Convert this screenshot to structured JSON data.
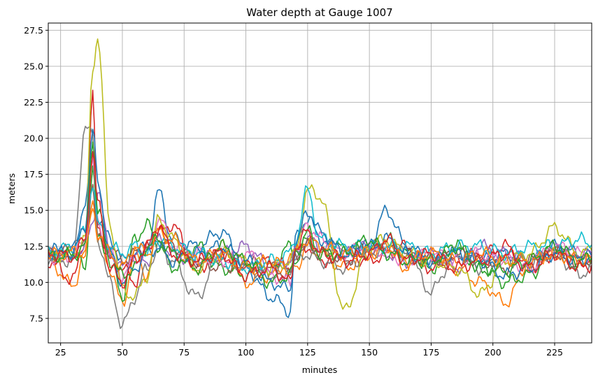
{
  "chart_data": {
    "type": "line",
    "title": "Water depth at Gauge 1007",
    "xlabel": "minutes",
    "ylabel": "meters",
    "xlim": [
      20,
      240
    ],
    "ylim": [
      5.8,
      28.0
    ],
    "xticks": [
      25,
      50,
      75,
      100,
      125,
      150,
      175,
      200,
      225
    ],
    "yticks": [
      7.5,
      10.0,
      12.5,
      15.0,
      17.5,
      20.0,
      22.5,
      25.0,
      27.5
    ],
    "grid": true,
    "legend": "none",
    "colors": [
      "#1f77b4",
      "#ff7f0e",
      "#2ca02c",
      "#d62728",
      "#9467bd",
      "#8c564b",
      "#e377c2",
      "#7f7f7f",
      "#bcbd22",
      "#17becf"
    ],
    "x": [
      20,
      30,
      35,
      38,
      40,
      45,
      50,
      55,
      60,
      65,
      70,
      80,
      90,
      100,
      110,
      118,
      120,
      125,
      130,
      140,
      150,
      157,
      165,
      175,
      185,
      195,
      205,
      215,
      225,
      235,
      240
    ],
    "series": [
      {
        "values": [
          12.2,
          12.3,
          15.5,
          19.0,
          14.5,
          13.0,
          11.5,
          12.0,
          12.5,
          16.3,
          13.0,
          12.5,
          13.5,
          11.0,
          9.0,
          8.0,
          13.0,
          14.5,
          13.0,
          12.0,
          12.5,
          15.0,
          12.5,
          11.5,
          12.0,
          11.5,
          12.0,
          11.5,
          12.5,
          12.0,
          11.8
        ]
      },
      {
        "values": [
          11.5,
          9.8,
          12.0,
          16.0,
          13.0,
          11.0,
          8.4,
          12.0,
          10.5,
          14.0,
          12.0,
          11.0,
          12.5,
          10.0,
          10.5,
          11.5,
          11.0,
          12.5,
          12.0,
          11.0,
          12.0,
          12.5,
          11.0,
          12.0,
          11.0,
          10.0,
          8.6,
          11.5,
          12.0,
          11.5,
          11.6
        ]
      },
      {
        "values": [
          11.8,
          12.0,
          11.0,
          18.0,
          13.0,
          12.0,
          9.0,
          13.0,
          14.0,
          12.5,
          11.0,
          12.5,
          11.0,
          10.5,
          11.0,
          12.5,
          11.5,
          13.0,
          12.0,
          12.5,
          12.0,
          13.0,
          12.0,
          11.0,
          12.5,
          11.0,
          10.0,
          10.5,
          12.5,
          11.0,
          11.7
        ]
      },
      {
        "values": [
          11.5,
          10.2,
          13.0,
          22.8,
          14.0,
          11.5,
          11.0,
          10.0,
          12.5,
          13.5,
          14.0,
          11.0,
          12.0,
          11.0,
          11.5,
          11.0,
          12.0,
          12.5,
          11.5,
          12.0,
          11.5,
          12.0,
          12.5,
          11.0,
          11.5,
          12.0,
          12.5,
          11.0,
          12.0,
          11.5,
          11.5
        ]
      },
      {
        "values": [
          11.9,
          12.0,
          12.5,
          14.0,
          16.5,
          12.0,
          11.0,
          12.0,
          11.5,
          13.0,
          12.0,
          11.5,
          12.0,
          12.5,
          11.0,
          11.5,
          12.0,
          13.0,
          12.5,
          12.0,
          12.5,
          12.0,
          11.5,
          12.0,
          11.0,
          12.5,
          12.0,
          11.5,
          12.5,
          12.0,
          12.0
        ]
      },
      {
        "values": [
          12.0,
          12.2,
          12.5,
          17.0,
          13.0,
          12.5,
          11.5,
          12.0,
          12.5,
          13.0,
          12.5,
          11.5,
          11.0,
          11.5,
          11.0,
          10.5,
          12.0,
          12.5,
          12.0,
          11.5,
          12.5,
          12.5,
          12.0,
          11.5,
          12.0,
          11.5,
          11.0,
          11.5,
          12.0,
          11.5,
          11.4
        ]
      },
      {
        "values": [
          11.7,
          11.8,
          13.0,
          18.5,
          14.0,
          12.0,
          10.5,
          11.5,
          12.0,
          14.5,
          12.5,
          12.0,
          11.5,
          12.0,
          10.5,
          10.0,
          12.5,
          14.0,
          13.0,
          12.0,
          12.5,
          12.0,
          11.5,
          12.0,
          11.5,
          12.0,
          11.5,
          11.0,
          12.5,
          12.0,
          11.9
        ]
      },
      {
        "values": [
          11.6,
          11.5,
          21.0,
          20.0,
          13.0,
          10.0,
          6.9,
          9.0,
          11.0,
          12.5,
          11.5,
          9.0,
          12.0,
          11.0,
          10.5,
          11.0,
          11.5,
          12.0,
          11.5,
          11.0,
          12.0,
          12.5,
          12.0,
          9.4,
          12.0,
          11.0,
          11.5,
          11.5,
          12.0,
          10.6,
          10.8
        ]
      },
      {
        "values": [
          11.8,
          12.0,
          13.0,
          25.0,
          27.0,
          14.0,
          9.5,
          9.0,
          10.5,
          14.5,
          13.0,
          11.0,
          12.0,
          11.5,
          11.0,
          11.5,
          12.0,
          16.4,
          16.0,
          8.0,
          12.5,
          13.0,
          12.0,
          11.5,
          11.0,
          9.2,
          11.5,
          12.0,
          13.8,
          12.0,
          12.2
        ]
      },
      {
        "values": [
          12.0,
          12.5,
          13.5,
          17.0,
          14.0,
          12.5,
          12.0,
          12.5,
          12.0,
          13.0,
          12.5,
          12.0,
          11.5,
          11.0,
          11.5,
          12.0,
          13.0,
          16.4,
          13.0,
          12.5,
          12.5,
          12.5,
          12.5,
          12.0,
          12.5,
          12.5,
          12.0,
          12.5,
          12.5,
          13.0,
          12.6
        ]
      },
      {
        "values": [
          12.1,
          12.0,
          14.0,
          20.5,
          17.0,
          12.0,
          10.0,
          11.0,
          12.0,
          12.5,
          11.5,
          12.0,
          12.5,
          11.5,
          10.0,
          9.5,
          12.5,
          15.0,
          13.5,
          12.0,
          12.5,
          13.0,
          12.0,
          11.5,
          12.0,
          11.5,
          10.5,
          11.0,
          12.0,
          11.5,
          11.8
        ]
      },
      {
        "values": [
          11.9,
          12.1,
          12.0,
          15.0,
          13.5,
          12.0,
          11.0,
          12.5,
          12.0,
          13.5,
          13.0,
          11.5,
          12.0,
          11.0,
          11.5,
          11.0,
          12.0,
          13.0,
          12.5,
          12.0,
          12.0,
          12.5,
          11.5,
          12.0,
          11.5,
          12.0,
          11.5,
          11.5,
          12.0,
          11.5,
          11.6
        ]
      },
      {
        "values": [
          11.8,
          11.9,
          12.5,
          20.0,
          15.0,
          11.5,
          10.5,
          11.0,
          12.5,
          13.0,
          12.0,
          11.0,
          12.5,
          11.5,
          10.0,
          10.5,
          12.0,
          13.5,
          12.0,
          12.0,
          13.0,
          12.0,
          11.5,
          11.5,
          12.5,
          11.0,
          10.8,
          11.5,
          12.5,
          11.5,
          11.7
        ]
      },
      {
        "values": [
          12.0,
          11.8,
          13.0,
          19.0,
          15.5,
          11.0,
          10.0,
          11.5,
          12.5,
          14.0,
          12.0,
          11.5,
          12.0,
          10.5,
          11.0,
          10.0,
          12.5,
          13.5,
          12.0,
          11.5,
          12.0,
          13.0,
          11.5,
          12.0,
          11.0,
          11.5,
          12.0,
          11.0,
          12.0,
          11.0,
          11.2
        ]
      }
    ]
  }
}
